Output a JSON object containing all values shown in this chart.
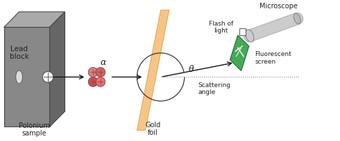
{
  "lead_color_front": "#888888",
  "lead_color_top": "#aaaaaa",
  "lead_color_right": "#666666",
  "lead_edge": "#444444",
  "gold_foil_color": "#f5b060",
  "gold_foil_alpha": 0.75,
  "fluorescent_color": "#44aa55",
  "fluorescent_edge": "#226633",
  "microscope_color": "#cccccc",
  "microscope_edge": "#888888",
  "text_color": "#222222",
  "arrow_color": "#111111",
  "alpha_colors": [
    "#cc8888",
    "#cc6666",
    "#bb5555",
    "#dd7777",
    "#cc6666"
  ],
  "alpha_edge": "#883333",
  "dashed_color": "#888888",
  "labels": {
    "lead_block": "Lead\nblock",
    "polonium": "Polonium\nsample",
    "gold_foil": "Gold\nfoil",
    "flash": "Flash of\nlight",
    "fluorescent": "Fluorescent\nscreen",
    "microscope": "Microscope",
    "scattering": "Scattering\nangle",
    "alpha": "α",
    "theta": "θ"
  }
}
